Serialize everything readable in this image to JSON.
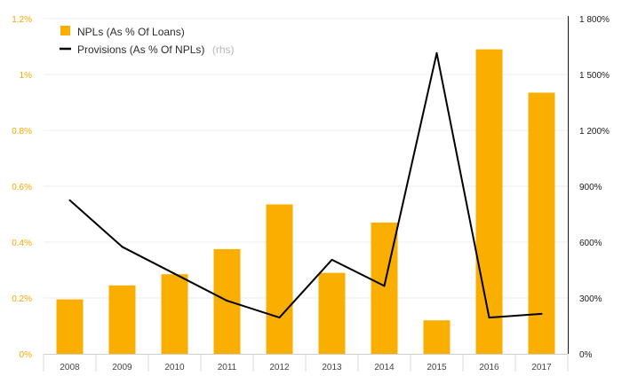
{
  "chart_data": {
    "type": "bar",
    "categories": [
      "2008",
      "2009",
      "2010",
      "2011",
      "2012",
      "2013",
      "2014",
      "2015",
      "2016",
      "2017"
    ],
    "series": [
      {
        "name": "NPLs (As % Of Loans)",
        "type": "bar",
        "axis": "left",
        "color": "#f9ae00",
        "values": [
          0.195,
          0.245,
          0.285,
          0.375,
          0.535,
          0.29,
          0.47,
          0.12,
          1.09,
          0.935
        ]
      },
      {
        "name": "Provisions (As % Of NPLs)",
        "legend_suffix": "(rhs)",
        "type": "line",
        "axis": "right",
        "color": "#000000",
        "values": [
          825,
          575,
          430,
          285,
          195,
          505,
          365,
          1615,
          195,
          215
        ]
      }
    ],
    "left_axis": {
      "ylim": [
        0,
        1.2
      ],
      "ticks": [
        0,
        0.2,
        0.4,
        0.6,
        0.8,
        1.0,
        1.2
      ],
      "tick_labels": [
        "0%",
        "0.2%",
        "0.4%",
        "0.6%",
        "0.8%",
        "1%",
        "1.2%"
      ],
      "color": "#f5a800"
    },
    "right_axis": {
      "ylim": [
        0,
        1800
      ],
      "ticks": [
        0,
        300,
        600,
        900,
        1200,
        1500,
        1800
      ],
      "tick_labels": [
        "0%",
        "300%",
        "600%",
        "900%",
        "1 200%",
        "1 500%",
        "1 800%"
      ],
      "color": "#1a1a1a"
    },
    "grid": true,
    "legend_position": "top-left",
    "title": "",
    "xlabel": "",
    "ylabel": ""
  }
}
